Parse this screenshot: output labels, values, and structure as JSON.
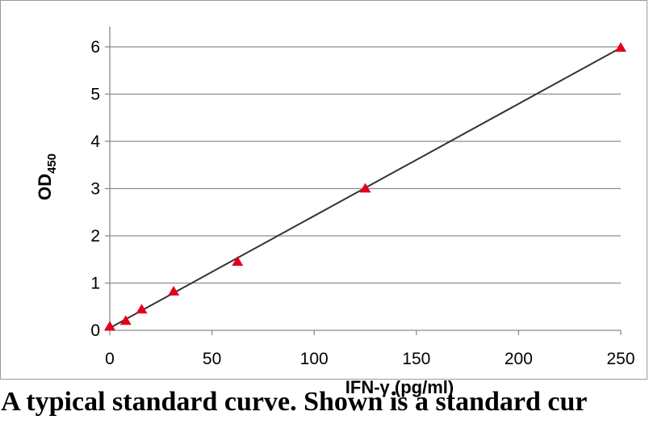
{
  "chart_data": {
    "type": "scatter",
    "title": "",
    "xlabel": "IFN-γ (pg/ml)",
    "ylabel": "OD",
    "ylabel_subscript": "450",
    "xlim": [
      0,
      250
    ],
    "ylim": [
      0,
      6
    ],
    "x_ticks": [
      "0",
      "50",
      "100",
      "150",
      "200",
      "250"
    ],
    "y_ticks": [
      "0",
      "1",
      "2",
      "3",
      "4",
      "5",
      "6"
    ],
    "grid": true,
    "legend": "none",
    "marker": "triangle",
    "marker_color": "#e3001b",
    "line_color": "#333333",
    "points": {
      "x": [
        0,
        7.8,
        15.6,
        31.25,
        62.5,
        125,
        250
      ],
      "y": [
        0.08,
        0.2,
        0.44,
        0.82,
        1.45,
        3.0,
        5.98
      ]
    },
    "trendline": {
      "x": [
        0,
        250
      ],
      "y": [
        0.05,
        5.98
      ]
    }
  },
  "caption": ". A typical standard curve. Shown is a standard cur"
}
